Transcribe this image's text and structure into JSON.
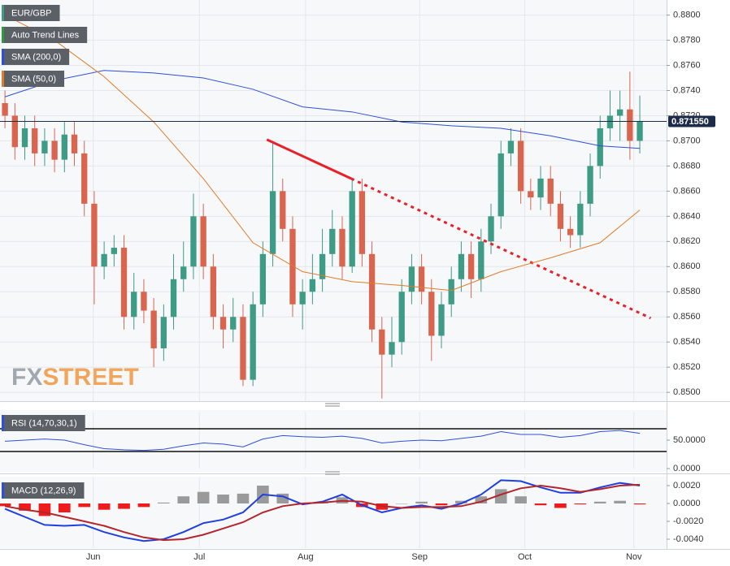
{
  "chart_data": [
    {
      "type": "candlestick",
      "symbol_label": "EUR/GBP",
      "watermark": {
        "prefix": "FX",
        "suffix": "STREET"
      },
      "up_color": "#3d9b86",
      "down_color": "#d9654f",
      "xlim": [
        -0.5,
        66.7
      ],
      "xticks": [
        {
          "value": 8.9,
          "label": "Jun"
        },
        {
          "value": 19.6,
          "label": "Jul"
        },
        {
          "value": 30.3,
          "label": "Aug"
        },
        {
          "value": 41.8,
          "label": "Sep"
        },
        {
          "value": 52.4,
          "label": "Oct"
        },
        {
          "value": 63.4,
          "label": "Nov"
        }
      ],
      "ylim": [
        0.8493,
        0.8812
      ],
      "yticks": [
        {
          "value": 0.85,
          "label": "0.8500"
        },
        {
          "value": 0.852,
          "label": "0.8520"
        },
        {
          "value": 0.854,
          "label": "0.8540"
        },
        {
          "value": 0.856,
          "label": "0.8560"
        },
        {
          "value": 0.858,
          "label": "0.8580"
        },
        {
          "value": 0.86,
          "label": "0.8600"
        },
        {
          "value": 0.862,
          "label": "0.8620"
        },
        {
          "value": 0.864,
          "label": "0.8640"
        },
        {
          "value": 0.866,
          "label": "0.8660"
        },
        {
          "value": 0.868,
          "label": "0.8680"
        },
        {
          "value": 0.87,
          "label": "0.8700"
        },
        {
          "value": 0.872,
          "label": "0.8720"
        },
        {
          "value": 0.874,
          "label": "0.8740"
        },
        {
          "value": 0.876,
          "label": "0.8760"
        },
        {
          "value": 0.878,
          "label": "0.8780"
        },
        {
          "value": 0.88,
          "label": "0.8800"
        }
      ],
      "grid": true,
      "open": [
        0.873,
        0.872,
        0.8695,
        0.871,
        0.869,
        0.87,
        0.8685,
        0.8705,
        0.869,
        0.865,
        0.86,
        0.861,
        0.8615,
        0.856,
        0.858,
        0.8565,
        0.8535,
        0.856,
        0.859,
        0.86,
        0.864,
        0.86,
        0.856,
        0.855,
        0.856,
        0.851,
        0.857,
        0.861,
        0.866,
        0.863,
        0.857,
        0.858,
        0.859,
        0.861,
        0.863,
        0.86,
        0.866,
        0.861,
        0.855,
        0.853,
        0.854,
        0.858,
        0.86,
        0.858,
        0.8545,
        0.857,
        0.859,
        0.861,
        0.859,
        0.862,
        0.864,
        0.869,
        0.87,
        0.866,
        0.8655,
        0.867,
        0.865,
        0.863,
        0.8625,
        0.865,
        0.868,
        0.871,
        0.872,
        0.8725,
        0.87
      ],
      "high": [
        0.874,
        0.873,
        0.872,
        0.872,
        0.871,
        0.871,
        0.8715,
        0.8715,
        0.87,
        0.866,
        0.862,
        0.8625,
        0.8625,
        0.8595,
        0.859,
        0.8575,
        0.857,
        0.861,
        0.862,
        0.8658,
        0.865,
        0.861,
        0.857,
        0.8575,
        0.857,
        0.858,
        0.862,
        0.87,
        0.867,
        0.864,
        0.859,
        0.861,
        0.863,
        0.8645,
        0.864,
        0.867,
        0.867,
        0.862,
        0.856,
        0.856,
        0.859,
        0.861,
        0.861,
        0.859,
        0.858,
        0.86,
        0.862,
        0.862,
        0.863,
        0.865,
        0.87,
        0.871,
        0.871,
        0.867,
        0.868,
        0.868,
        0.866,
        0.864,
        0.866,
        0.869,
        0.872,
        0.874,
        0.874,
        0.8755,
        0.8736
      ],
      "low": [
        0.871,
        0.8685,
        0.8685,
        0.868,
        0.868,
        0.8675,
        0.8675,
        0.868,
        0.864,
        0.857,
        0.859,
        0.86,
        0.855,
        0.855,
        0.8555,
        0.852,
        0.8525,
        0.855,
        0.858,
        0.859,
        0.859,
        0.855,
        0.8535,
        0.854,
        0.8505,
        0.8505,
        0.856,
        0.86,
        0.862,
        0.856,
        0.855,
        0.857,
        0.858,
        0.86,
        0.859,
        0.8595,
        0.86,
        0.854,
        0.8495,
        0.852,
        0.853,
        0.857,
        0.857,
        0.8525,
        0.8535,
        0.856,
        0.858,
        0.8575,
        0.858,
        0.861,
        0.863,
        0.868,
        0.865,
        0.8645,
        0.8645,
        0.864,
        0.862,
        0.8615,
        0.8615,
        0.864,
        0.867,
        0.87,
        0.87,
        0.8685,
        0.869
      ],
      "close": [
        0.872,
        0.8695,
        0.871,
        0.869,
        0.87,
        0.8685,
        0.8705,
        0.869,
        0.865,
        0.86,
        0.861,
        0.8615,
        0.856,
        0.858,
        0.8565,
        0.8535,
        0.856,
        0.859,
        0.86,
        0.864,
        0.86,
        0.856,
        0.855,
        0.856,
        0.851,
        0.857,
        0.861,
        0.866,
        0.863,
        0.857,
        0.858,
        0.859,
        0.861,
        0.863,
        0.86,
        0.866,
        0.861,
        0.855,
        0.853,
        0.854,
        0.858,
        0.86,
        0.858,
        0.8545,
        0.857,
        0.859,
        0.861,
        0.859,
        0.862,
        0.864,
        0.869,
        0.87,
        0.866,
        0.8655,
        0.867,
        0.865,
        0.863,
        0.8625,
        0.865,
        0.868,
        0.871,
        0.872,
        0.8725,
        0.87,
        0.87155
      ],
      "last_price": {
        "value": 0.87155,
        "label": "0.871550",
        "color": "#1c2b4a"
      },
      "overlays": [
        {
          "name": "Auto Trend Lines",
          "color": "#e8202a",
          "legend_color": "#2e9a3e",
          "segments": [
            {
              "style": "solid",
              "x": [
                26.4,
                34.9
              ],
              "values": [
                0.8701,
                0.867
              ]
            },
            {
              "style": "dotted",
              "x": [
                34.9,
                65.1
              ],
              "values": [
                0.867,
                0.8559
              ]
            }
          ]
        },
        {
          "name": "SMA (200,0)",
          "color": "#2f4fd6",
          "x": [
            0,
            5,
            10,
            15,
            20,
            25,
            30,
            35,
            40,
            45,
            50,
            55,
            60,
            64
          ],
          "values": [
            0.8735,
            0.8748,
            0.8756,
            0.8754,
            0.875,
            0.8741,
            0.8727,
            0.8723,
            0.8715,
            0.8712,
            0.871,
            0.8704,
            0.8696,
            0.8694
          ]
        },
        {
          "name": "SMA (50,0)",
          "color": "#e07b2a",
          "x": [
            0,
            5,
            10,
            15,
            20,
            25,
            30,
            35,
            40,
            45,
            50,
            55,
            60,
            64
          ],
          "values": [
            0.88,
            0.878,
            0.8751,
            0.8715,
            0.867,
            0.8619,
            0.8596,
            0.8588,
            0.8585,
            0.8581,
            0.8596,
            0.8607,
            0.8619,
            0.8645
          ]
        }
      ]
    },
    {
      "type": "line",
      "name": "RSI (14,70,30,1)",
      "color": "#2f4fd6",
      "ylim": [
        0,
        100
      ],
      "yticks": [
        {
          "value": 50,
          "label": "50.0000"
        },
        {
          "value": 0,
          "label": "0.0000"
        }
      ],
      "levels": [
        70,
        30
      ],
      "x": [
        0,
        2,
        4,
        6,
        8,
        10,
        12,
        14,
        16,
        18,
        20,
        22,
        24,
        26,
        28,
        30,
        32,
        34,
        36,
        38,
        40,
        42,
        44,
        46,
        48,
        50,
        52,
        54,
        56,
        58,
        60,
        62,
        64
      ],
      "values": [
        48,
        50,
        52,
        50,
        42,
        35,
        33,
        32,
        34,
        40,
        45,
        43,
        38,
        52,
        58,
        56,
        55,
        57,
        53,
        45,
        48,
        50,
        49,
        53,
        57,
        65,
        60,
        60,
        55,
        58,
        65,
        67,
        62
      ]
    },
    {
      "type": "macd",
      "name": "MACD (12,26,9)",
      "color": "#2f4fd6",
      "ylim": [
        -0.005,
        0.003
      ],
      "yticks": [
        {
          "value": 0.002,
          "label": "0.0020"
        },
        {
          "value": 0,
          "label": "0.0000"
        },
        {
          "value": -0.002,
          "label": "-0.0020"
        },
        {
          "value": -0.004,
          "label": "-0.0040"
        }
      ],
      "x": [
        0,
        2,
        4,
        6,
        8,
        10,
        12,
        14,
        16,
        18,
        20,
        22,
        24,
        26,
        28,
        30,
        32,
        34,
        36,
        38,
        40,
        42,
        44,
        46,
        48,
        50,
        52,
        54,
        56,
        58,
        60,
        62,
        64
      ],
      "macd": {
        "color": "#1f3fe0",
        "values": [
          -0.0006,
          -0.0015,
          -0.0024,
          -0.0025,
          -0.0024,
          -0.0032,
          -0.0038,
          -0.0042,
          -0.004,
          -0.0032,
          -0.0022,
          -0.0018,
          -0.001,
          0.001,
          0.0008,
          -0.0001,
          0.0002,
          0.001,
          -0.0002,
          -0.001,
          -0.0005,
          -0.0002,
          -0.0006,
          0.0,
          0.001,
          0.0026,
          0.0025,
          0.0018,
          0.0012,
          0.0012,
          0.0018,
          0.0023,
          0.002
        ]
      },
      "signal": {
        "color": "#b3262b",
        "values": [
          -0.0003,
          -0.0007,
          -0.001,
          -0.0015,
          -0.002,
          -0.0025,
          -0.0032,
          -0.0038,
          -0.0041,
          -0.004,
          -0.0035,
          -0.0028,
          -0.0021,
          -0.001,
          -0.0003,
          0.0,
          0.0001,
          0.0003,
          0.0002,
          -0.0003,
          -0.0005,
          -0.0004,
          -0.0004,
          -0.0003,
          0.0002,
          0.001,
          0.0017,
          0.002,
          0.0017,
          0.0013,
          0.0016,
          0.002,
          0.0021
        ]
      },
      "histogram": {
        "up_color": "#9a9a9a",
        "down_color": "#ee1c1c",
        "values": [
          -0.0003,
          -0.0008,
          -0.0014,
          -0.001,
          -0.0004,
          -0.0007,
          -0.0006,
          -0.0004,
          0.0001,
          0.0008,
          0.0013,
          0.001,
          0.0011,
          0.002,
          0.0011,
          -0.0001,
          0.0001,
          0.0007,
          -0.0004,
          -0.0007,
          0.0,
          0.0002,
          -0.0002,
          0.0003,
          0.0008,
          0.0016,
          0.0008,
          -0.0002,
          -0.0005,
          -0.0001,
          0.0002,
          0.0003,
          -0.0001
        ]
      }
    }
  ]
}
